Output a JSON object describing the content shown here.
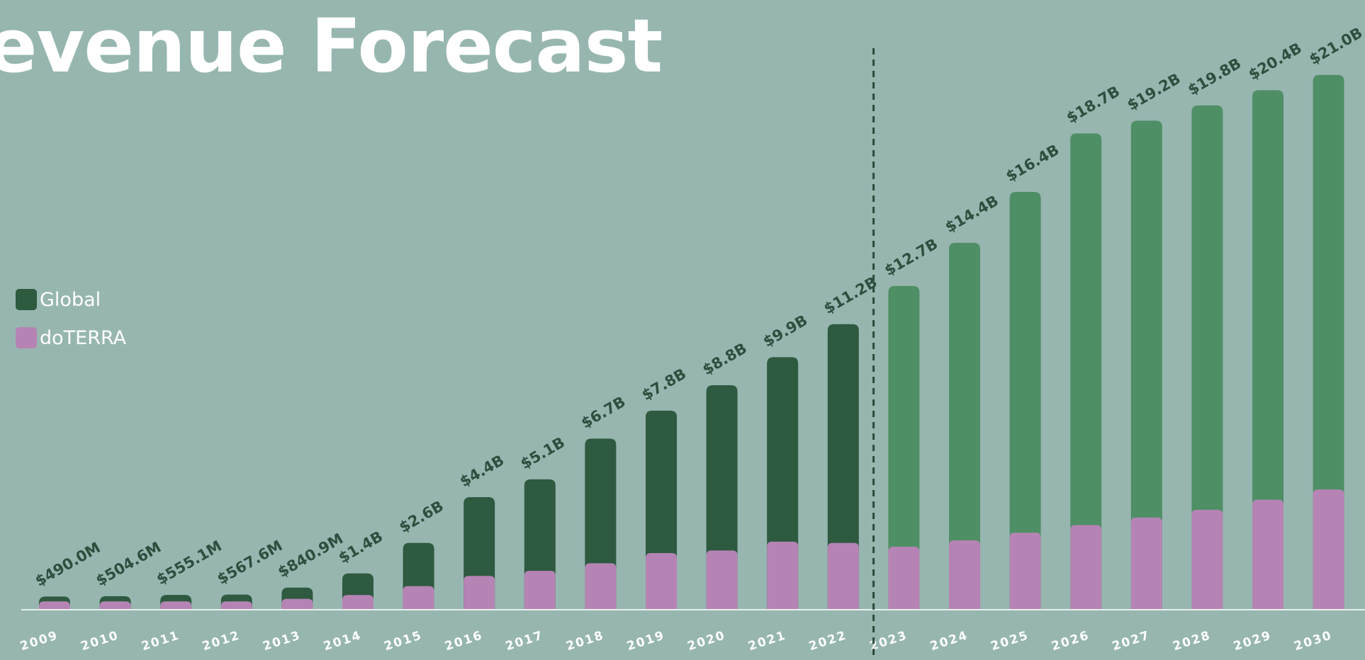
{
  "title": "evenue Forecast",
  "legend": {
    "items": [
      {
        "label": "Global",
        "color": "#2e5a40"
      },
      {
        "label": "doTERRA",
        "color": "#b584b4"
      }
    ]
  },
  "colors": {
    "background": "#97b6b0",
    "historical_bar": "#2e5a40",
    "forecast_bar": "#4f8f66",
    "doterra_bar": "#b584b4",
    "value_label": "#2e4f3e",
    "year_label": "#ffffff",
    "divider": "#2b4a3a"
  },
  "chart_data": {
    "type": "bar",
    "stacked": "overlay",
    "categories": [
      "2009",
      "2010",
      "2011",
      "2012",
      "2013",
      "2014",
      "2015",
      "2016",
      "2017",
      "2018",
      "2019",
      "2020",
      "2021",
      "2022",
      "2023",
      "2024",
      "2025",
      "2026",
      "2027",
      "2028",
      "2029",
      "2030"
    ],
    "forecast_start": "2023",
    "series": [
      {
        "name": "Global",
        "values": [
          0.49,
          0.5046,
          0.5551,
          0.5676,
          0.8409,
          1.4,
          2.6,
          4.4,
          5.1,
          6.7,
          7.8,
          8.8,
          9.9,
          11.2,
          12.7,
          14.4,
          16.4,
          18.7,
          19.2,
          19.8,
          20.4,
          21.0
        ],
        "labels": [
          "$490.0M",
          "$504.6M",
          "$555.1M",
          "$567.6M",
          "$840.9M",
          "$1.4B",
          "$2.6B",
          "$4.4B",
          "$5.1B",
          "$6.7B",
          "$7.8B",
          "$8.8B",
          "$9.9B",
          "$11.2B",
          "$12.7B",
          "$14.4B",
          "$16.4B",
          "$18.7B",
          "$19.2B",
          "$19.8B",
          "$20.4B",
          "$21.0B"
        ]
      },
      {
        "name": "doTERRA",
        "values": [
          0.3,
          0.3,
          0.3,
          0.3,
          0.4,
          0.55,
          0.9,
          1.3,
          1.5,
          1.8,
          2.2,
          2.3,
          2.65,
          2.6,
          2.45,
          2.7,
          3.0,
          3.3,
          3.6,
          3.9,
          4.3,
          4.7
        ]
      }
    ],
    "ylim": [
      0,
      21.3
    ],
    "grid": false,
    "legend_position": "left"
  }
}
